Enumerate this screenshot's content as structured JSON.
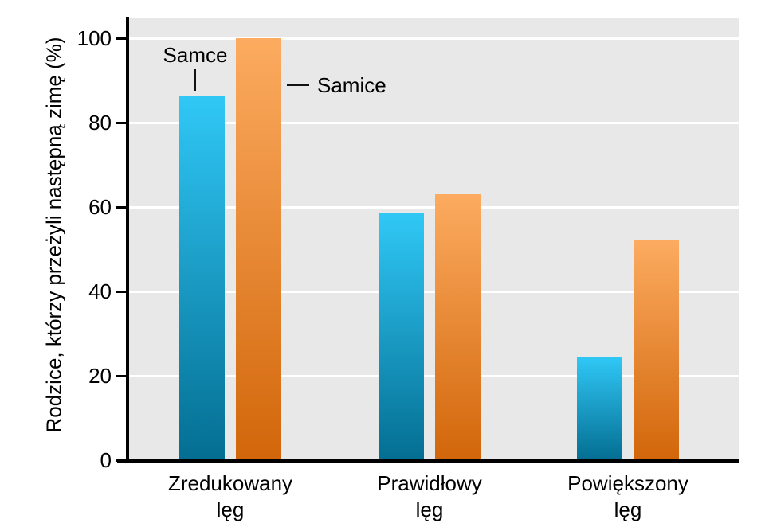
{
  "chart_data": {
    "type": "bar",
    "title": "",
    "categories": [
      "Zredukowany lęg",
      "Prawidłowy lęg",
      "Powiększony lęg"
    ],
    "category_labels_two_line": [
      "Zredukowany\nlęg",
      "Prawidłowy\nlęg",
      "Powiększony\nlęg"
    ],
    "series": [
      {
        "name": "Samce",
        "values": [
          86.5,
          58.5,
          24.5
        ],
        "color_top": "#30c8f6",
        "color_bottom": "#046e92"
      },
      {
        "name": "Samice",
        "values": [
          100,
          63,
          52
        ],
        "color_top": "#fcab60",
        "color_bottom": "#d2660a"
      }
    ],
    "xlabel": "",
    "ylabel": "Rodzice, którzy przeżyli następną zimę (%)",
    "ylim": [
      0,
      105
    ],
    "yticks": [
      0,
      20,
      40,
      60,
      80,
      100
    ],
    "grid": true,
    "gridcolor": "#ffffff",
    "plot_background": "#e8e8e8",
    "legend_position": "inline-annotations-on-first-category"
  },
  "annotations": {
    "samce_label": "Samce",
    "samice_label": "Samice"
  }
}
